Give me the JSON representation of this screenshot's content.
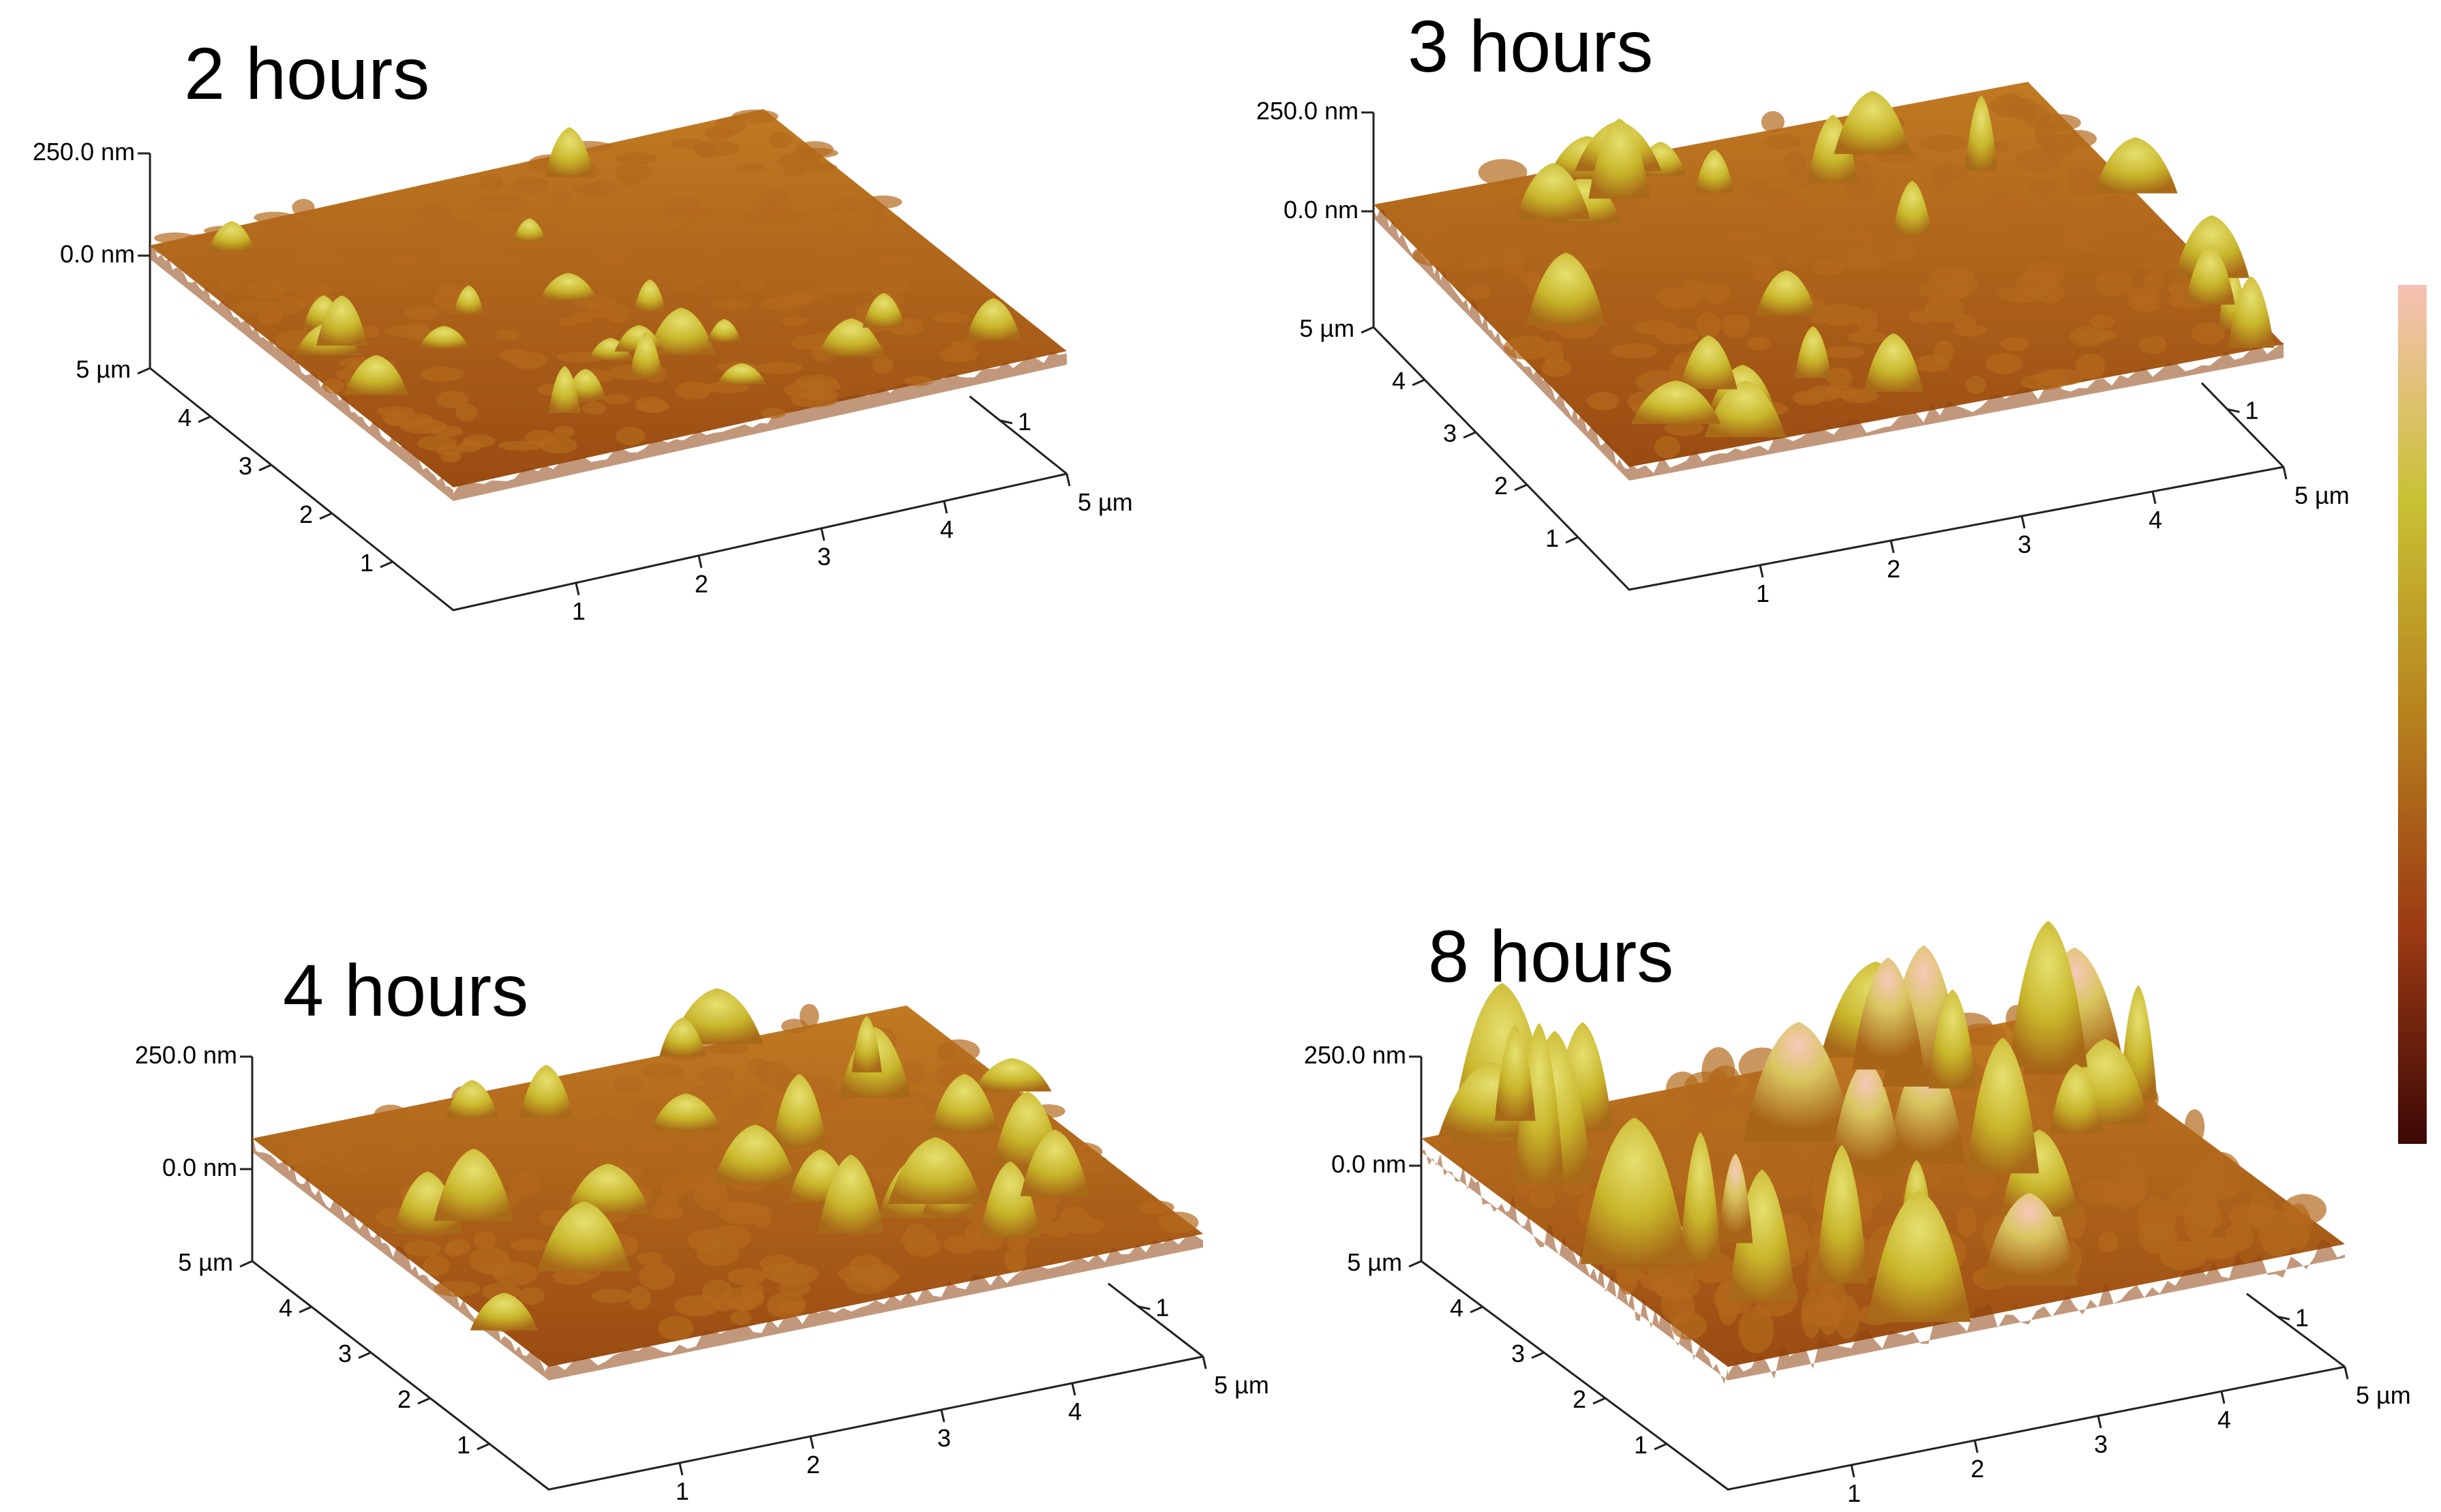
{
  "panels": [
    {
      "title": "2 hours",
      "z_top_label": "250.0 nm",
      "z_zero_label": "0.0 nm",
      "y_ticks": [
        "5 µm",
        "4",
        "3",
        "2",
        "1"
      ],
      "x_ticks": [
        "1",
        "2",
        "3",
        "4",
        "5 µm"
      ],
      "right_ticks": [
        "1",
        "5 µm"
      ],
      "relief": "low"
    },
    {
      "title": "3 hours",
      "z_top_label": "250.0 nm",
      "z_zero_label": "0.0 nm",
      "y_ticks": [
        "5 µm",
        "4",
        "3",
        "2",
        "1"
      ],
      "x_ticks": [
        "1",
        "2",
        "3",
        "4",
        "5 µm"
      ],
      "right_ticks": [
        "1",
        "5 µm"
      ],
      "relief": "moderate"
    },
    {
      "title": "4 hours",
      "z_top_label": "250.0 nm",
      "z_zero_label": "0.0 nm",
      "y_ticks": [
        "5 µm",
        "4",
        "3",
        "2",
        "1"
      ],
      "x_ticks": [
        "1",
        "2",
        "3",
        "4",
        "5 µm"
      ],
      "right_ticks": [
        "1",
        "5 µm"
      ],
      "relief": "moderate"
    },
    {
      "title": "8 hours",
      "z_top_label": "250.0 nm",
      "z_zero_label": "0.0 nm",
      "y_ticks": [
        "5 µm",
        "4",
        "3",
        "2",
        "1"
      ],
      "x_ticks": [
        "1",
        "2",
        "3",
        "4",
        "5 µm"
      ],
      "right_ticks": [
        "1",
        "5 µm"
      ],
      "relief": "high"
    }
  ],
  "colorbar": {
    "colors": [
      "#f6c1b5",
      "#c9c134",
      "#b7821e",
      "#9c3a13",
      "#3d0806"
    ]
  }
}
